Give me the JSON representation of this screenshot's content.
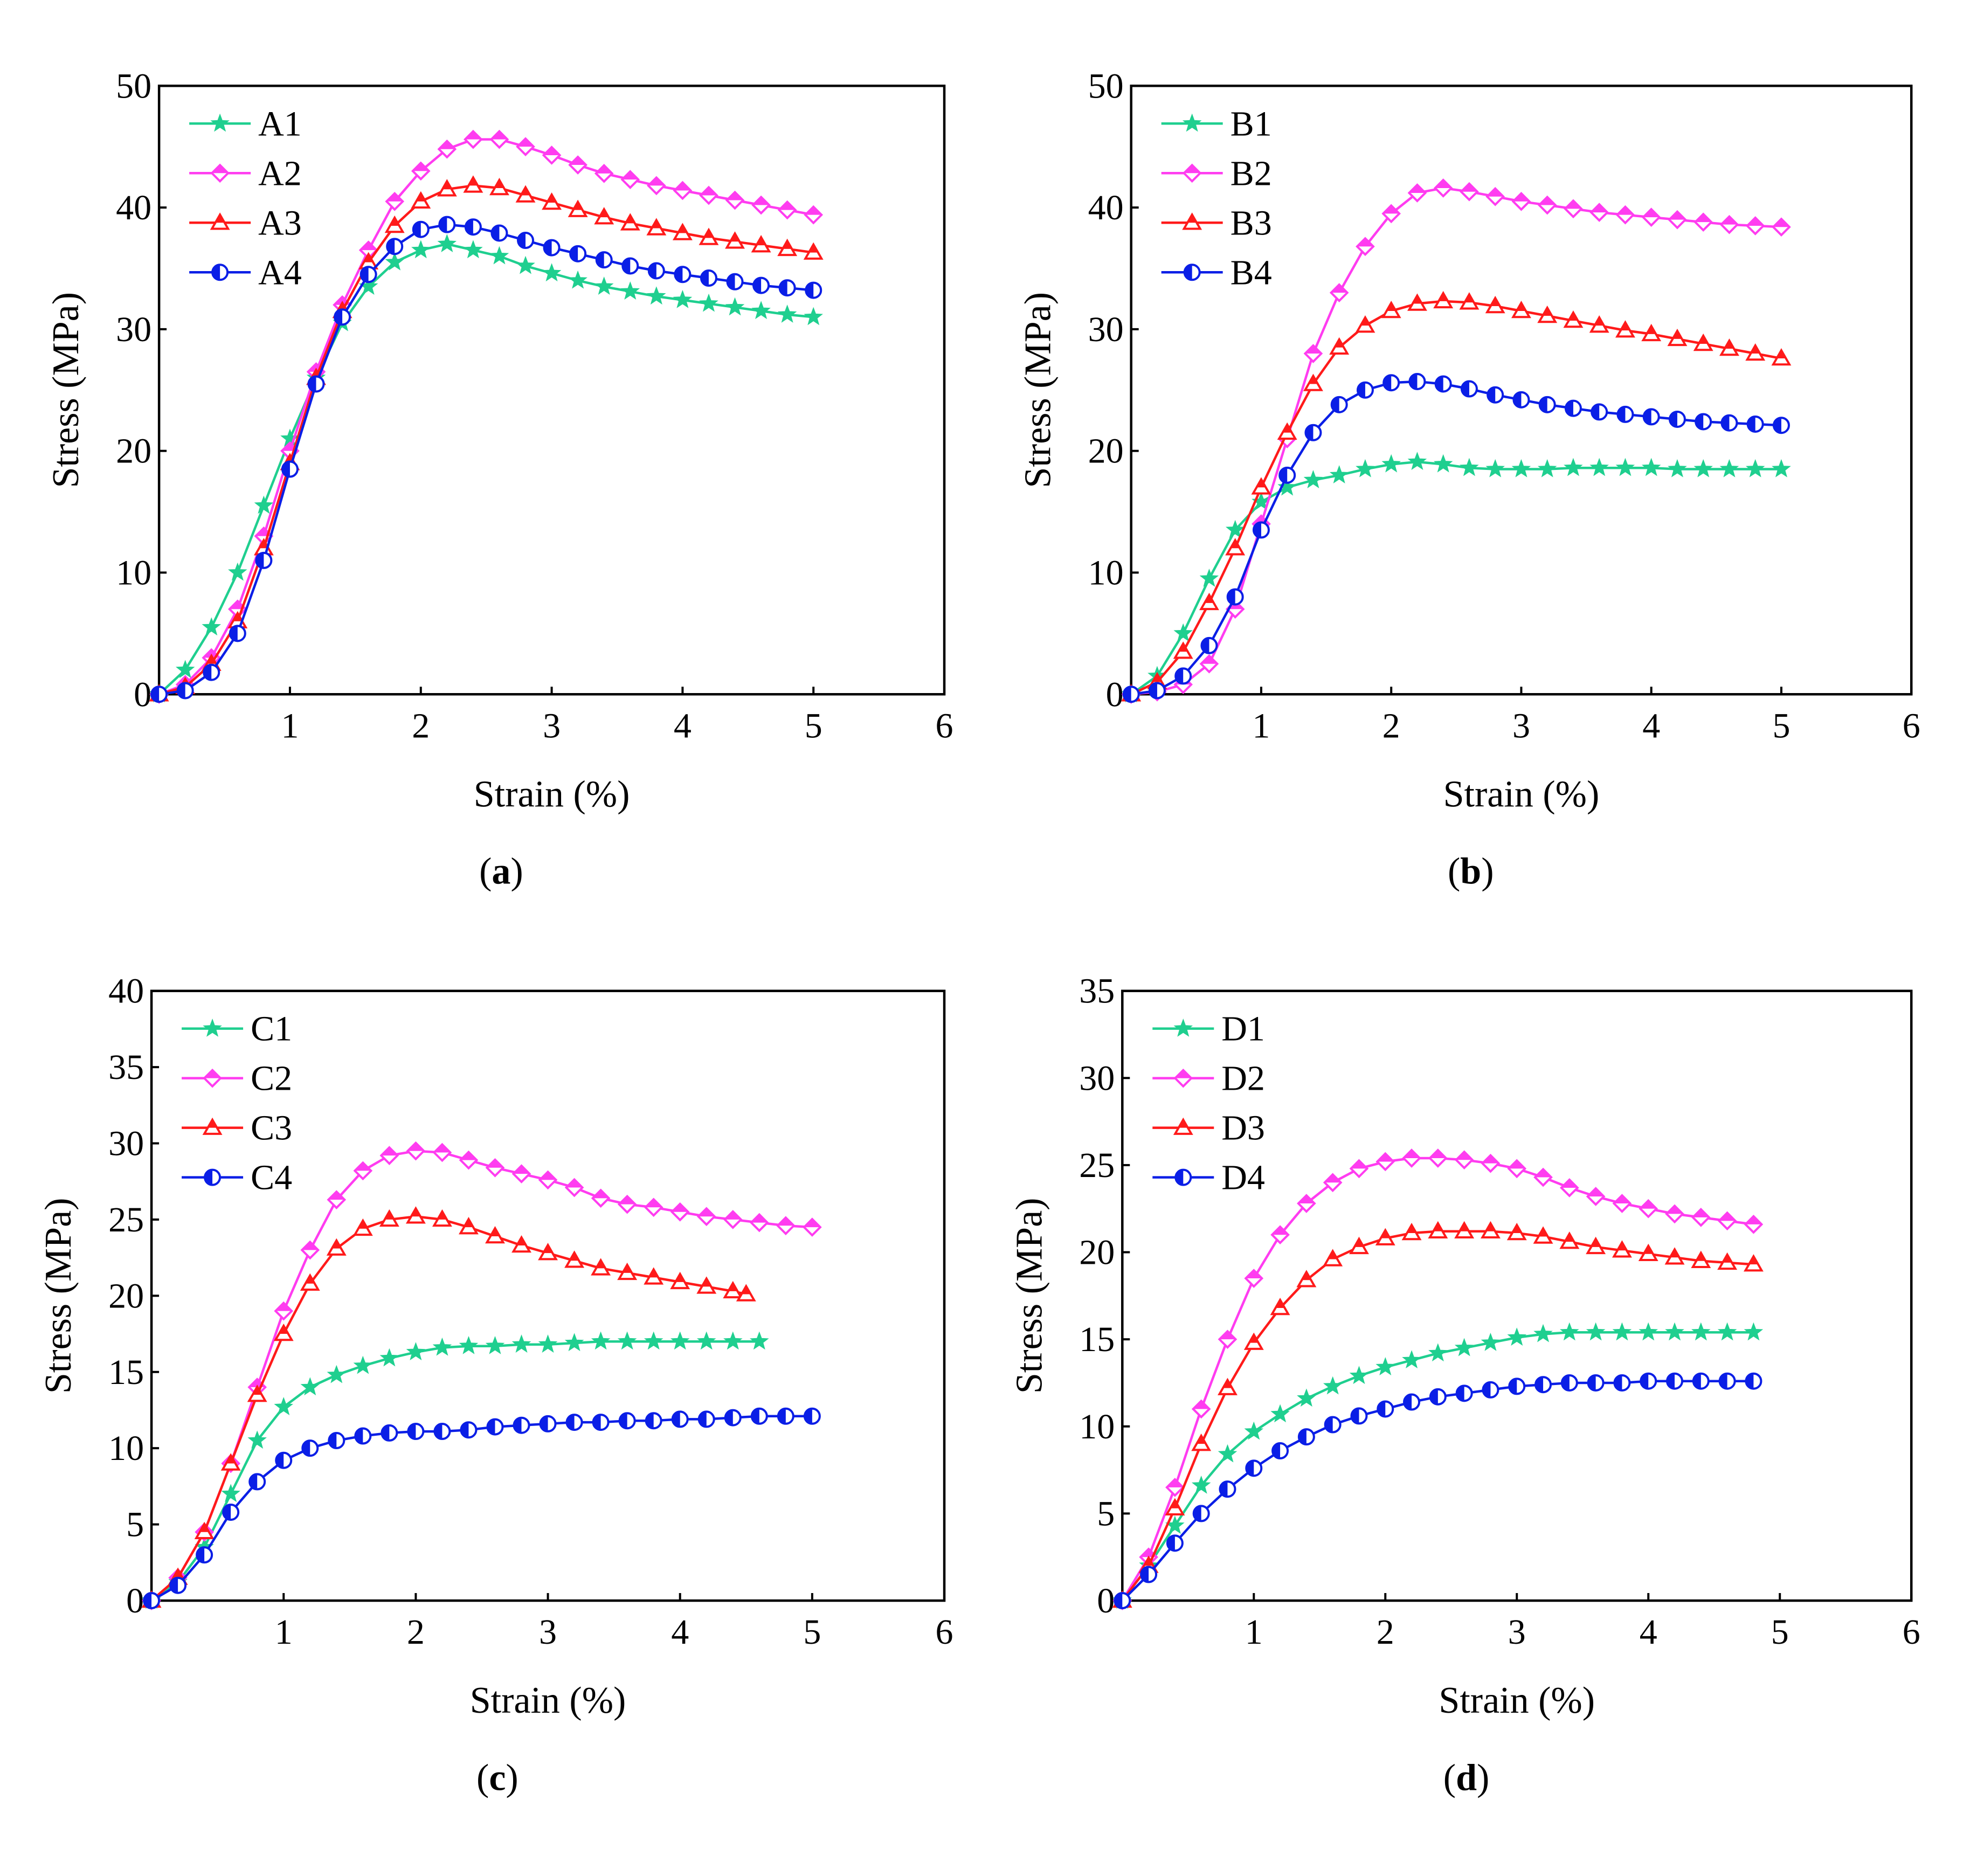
{
  "chart_data": [
    {
      "type": "line",
      "panel_label": "a",
      "title": "",
      "xlabel": "Strain (%)",
      "ylabel": "Stress (MPa)",
      "xlim": [
        0,
        6
      ],
      "ylim": [
        0,
        50
      ],
      "xticks": [
        1,
        2,
        3,
        4,
        5,
        6
      ],
      "yticks": [
        0,
        10,
        20,
        30,
        40,
        50
      ],
      "legend_position": "top-left",
      "series": [
        {
          "name": "A1",
          "color": "#1fcf8f",
          "marker": "star",
          "x": [
            0,
            0.2,
            0.4,
            0.6,
            0.8,
            1.0,
            1.2,
            1.4,
            1.6,
            1.8,
            2.0,
            2.2,
            2.4,
            2.6,
            2.8,
            3.0,
            3.2,
            3.4,
            3.6,
            3.8,
            4.0,
            4.2,
            4.4,
            4.6,
            4.8,
            5.0
          ],
          "y": [
            0,
            2,
            5.5,
            10,
            15.5,
            21,
            26,
            30.5,
            33.5,
            35.5,
            36.5,
            37,
            36.5,
            36,
            35.2,
            34.6,
            34,
            33.5,
            33.1,
            32.7,
            32.4,
            32.1,
            31.8,
            31.5,
            31.2,
            31
          ]
        },
        {
          "name": "A2",
          "color": "#ff3cf0",
          "marker": "diamond",
          "x": [
            0,
            0.2,
            0.4,
            0.6,
            0.8,
            1.0,
            1.2,
            1.4,
            1.6,
            1.8,
            2.0,
            2.2,
            2.4,
            2.6,
            2.8,
            3.0,
            3.2,
            3.4,
            3.6,
            3.8,
            4.0,
            4.2,
            4.4,
            4.6,
            4.8,
            5.0
          ],
          "y": [
            0,
            0.8,
            3,
            7,
            13,
            20,
            26.5,
            32,
            36.5,
            40.5,
            43,
            44.8,
            45.6,
            45.6,
            45,
            44.3,
            43.5,
            42.8,
            42.3,
            41.8,
            41.4,
            41,
            40.6,
            40.2,
            39.8,
            39.4
          ]
        },
        {
          "name": "A3",
          "color": "#ff1a1a",
          "marker": "triangle",
          "x": [
            0,
            0.2,
            0.4,
            0.6,
            0.8,
            1.0,
            1.2,
            1.4,
            1.6,
            1.8,
            2.0,
            2.2,
            2.4,
            2.6,
            2.8,
            3.0,
            3.2,
            3.4,
            3.6,
            3.8,
            4.0,
            4.2,
            4.4,
            4.6,
            4.8,
            5.0
          ],
          "y": [
            0,
            0.6,
            2.5,
            6,
            12,
            19,
            26,
            31.5,
            35.5,
            38.5,
            40.5,
            41.5,
            41.8,
            41.6,
            41,
            40.4,
            39.8,
            39.2,
            38.7,
            38.3,
            37.9,
            37.5,
            37.2,
            36.9,
            36.6,
            36.3
          ]
        },
        {
          "name": "A4",
          "color": "#0a1ee6",
          "marker": "half-circle",
          "x": [
            0,
            0.2,
            0.4,
            0.6,
            0.8,
            1.0,
            1.2,
            1.4,
            1.6,
            1.8,
            2.0,
            2.2,
            2.4,
            2.6,
            2.8,
            3.0,
            3.2,
            3.4,
            3.6,
            3.8,
            4.0,
            4.2,
            4.4,
            4.6,
            4.8,
            5.0
          ],
          "y": [
            0,
            0.3,
            1.8,
            5,
            11,
            18.5,
            25.5,
            31,
            34.5,
            36.8,
            38.2,
            38.6,
            38.4,
            37.9,
            37.3,
            36.7,
            36.2,
            35.7,
            35.2,
            34.8,
            34.5,
            34.2,
            33.9,
            33.6,
            33.4,
            33.2
          ]
        }
      ]
    },
    {
      "type": "line",
      "panel_label": "b",
      "title": "",
      "xlabel": "Strain (%)",
      "ylabel": "Stress (MPa)",
      "xlim": [
        0,
        6
      ],
      "ylim": [
        0,
        50
      ],
      "xticks": [
        1,
        2,
        3,
        4,
        5,
        6
      ],
      "yticks": [
        0,
        10,
        20,
        30,
        40,
        50
      ],
      "legend_position": "top-left",
      "series": [
        {
          "name": "B1",
          "color": "#1fcf8f",
          "marker": "star",
          "x": [
            0,
            0.2,
            0.4,
            0.6,
            0.8,
            1.0,
            1.2,
            1.4,
            1.6,
            1.8,
            2.0,
            2.2,
            2.4,
            2.6,
            2.8,
            3.0,
            3.2,
            3.4,
            3.6,
            3.8,
            4.0,
            4.2,
            4.4,
            4.6,
            4.8,
            5.0
          ],
          "y": [
            0,
            1.5,
            5,
            9.5,
            13.5,
            15.8,
            17,
            17.6,
            18,
            18.5,
            18.9,
            19.1,
            18.9,
            18.6,
            18.5,
            18.5,
            18.5,
            18.6,
            18.6,
            18.6,
            18.6,
            18.5,
            18.5,
            18.5,
            18.5,
            18.5
          ]
        },
        {
          "name": "B2",
          "color": "#ff3cf0",
          "marker": "diamond",
          "x": [
            0,
            0.2,
            0.4,
            0.6,
            0.8,
            1.0,
            1.2,
            1.4,
            1.6,
            1.8,
            2.0,
            2.2,
            2.4,
            2.6,
            2.8,
            3.0,
            3.2,
            3.4,
            3.6,
            3.8,
            4.0,
            4.2,
            4.4,
            4.6,
            4.8,
            5.0
          ],
          "y": [
            0,
            0.2,
            0.8,
            2.5,
            7,
            14,
            21,
            28,
            33,
            36.8,
            39.5,
            41.2,
            41.6,
            41.3,
            40.9,
            40.5,
            40.2,
            39.9,
            39.6,
            39.4,
            39.2,
            39,
            38.8,
            38.6,
            38.5,
            38.4
          ]
        },
        {
          "name": "B3",
          "color": "#ff1a1a",
          "marker": "triangle",
          "x": [
            0,
            0.2,
            0.4,
            0.6,
            0.8,
            1.0,
            1.2,
            1.4,
            1.6,
            1.8,
            2.0,
            2.2,
            2.4,
            2.6,
            2.8,
            3.0,
            3.2,
            3.4,
            3.6,
            3.8,
            4.0,
            4.2,
            4.4,
            4.6,
            4.8,
            5.0
          ],
          "y": [
            0,
            1,
            3.5,
            7.5,
            12,
            17,
            21.5,
            25.5,
            28.5,
            30.3,
            31.5,
            32.1,
            32.3,
            32.2,
            31.9,
            31.5,
            31.1,
            30.7,
            30.3,
            29.9,
            29.6,
            29.2,
            28.8,
            28.4,
            28,
            27.6
          ]
        },
        {
          "name": "B4",
          "color": "#0a1ee6",
          "marker": "half-circle",
          "x": [
            0,
            0.2,
            0.4,
            0.6,
            0.8,
            1.0,
            1.2,
            1.4,
            1.6,
            1.8,
            2.0,
            2.2,
            2.4,
            2.6,
            2.8,
            3.0,
            3.2,
            3.4,
            3.6,
            3.8,
            4.0,
            4.2,
            4.4,
            4.6,
            4.8,
            5.0
          ],
          "y": [
            0,
            0.3,
            1.5,
            4,
            8,
            13.5,
            18,
            21.5,
            23.8,
            25,
            25.6,
            25.7,
            25.5,
            25.1,
            24.6,
            24.2,
            23.8,
            23.5,
            23.2,
            23,
            22.8,
            22.6,
            22.4,
            22.3,
            22.2,
            22.1
          ]
        }
      ]
    },
    {
      "type": "line",
      "panel_label": "c",
      "title": "",
      "xlabel": "Strain (%)",
      "ylabel": "Stress (MPa)",
      "xlim": [
        0,
        6
      ],
      "ylim": [
        0,
        40
      ],
      "xticks": [
        1,
        2,
        3,
        4,
        5,
        6
      ],
      "yticks": [
        0,
        5,
        10,
        15,
        20,
        25,
        30,
        35,
        40
      ],
      "legend_position": "top-left",
      "series": [
        {
          "name": "C1",
          "color": "#1fcf8f",
          "marker": "star",
          "x": [
            0,
            0.2,
            0.4,
            0.6,
            0.8,
            1.0,
            1.2,
            1.4,
            1.6,
            1.8,
            2.0,
            2.2,
            2.4,
            2.6,
            2.8,
            3.0,
            3.2,
            3.4,
            3.6,
            3.8,
            4.0,
            4.2,
            4.4,
            4.6
          ],
          "y": [
            0,
            1.2,
            3.5,
            7,
            10.5,
            12.7,
            14,
            14.8,
            15.4,
            15.9,
            16.3,
            16.6,
            16.7,
            16.7,
            16.8,
            16.8,
            16.9,
            17,
            17,
            17,
            17,
            17,
            17,
            17
          ]
        },
        {
          "name": "C2",
          "color": "#ff3cf0",
          "marker": "diamond",
          "x": [
            0,
            0.2,
            0.4,
            0.6,
            0.8,
            1.0,
            1.2,
            1.4,
            1.6,
            1.8,
            2.0,
            2.2,
            2.4,
            2.6,
            2.8,
            3.0,
            3.2,
            3.4,
            3.6,
            3.8,
            4.0,
            4.2,
            4.4,
            4.6,
            4.8,
            5.0
          ],
          "y": [
            0,
            1.5,
            4.5,
            9,
            14,
            19,
            23,
            26.3,
            28.2,
            29.2,
            29.5,
            29.4,
            28.9,
            28.4,
            28,
            27.6,
            27.1,
            26.4,
            26,
            25.8,
            25.5,
            25.2,
            25,
            24.8,
            24.6,
            24.5
          ]
        },
        {
          "name": "C3",
          "color": "#ff1a1a",
          "marker": "triangle",
          "x": [
            0,
            0.2,
            0.4,
            0.6,
            0.8,
            1.0,
            1.2,
            1.4,
            1.6,
            1.8,
            2.0,
            2.2,
            2.4,
            2.6,
            2.8,
            3.0,
            3.2,
            3.4,
            3.6,
            3.8,
            4.0,
            4.2,
            4.4,
            4.5
          ],
          "y": [
            0,
            1.5,
            4.5,
            9,
            13.5,
            17.5,
            20.8,
            23.1,
            24.4,
            25,
            25.2,
            25,
            24.5,
            23.9,
            23.3,
            22.8,
            22.3,
            21.8,
            21.5,
            21.2,
            20.9,
            20.6,
            20.3,
            20.1
          ]
        },
        {
          "name": "C4",
          "color": "#0a1ee6",
          "marker": "half-circle",
          "x": [
            0,
            0.2,
            0.4,
            0.6,
            0.8,
            1.0,
            1.2,
            1.4,
            1.6,
            1.8,
            2.0,
            2.2,
            2.4,
            2.6,
            2.8,
            3.0,
            3.2,
            3.4,
            3.6,
            3.8,
            4.0,
            4.2,
            4.4,
            4.6,
            4.8,
            5.0
          ],
          "y": [
            0,
            1,
            3,
            5.8,
            7.8,
            9.2,
            10,
            10.5,
            10.8,
            11,
            11.1,
            11.1,
            11.2,
            11.4,
            11.5,
            11.6,
            11.7,
            11.7,
            11.8,
            11.8,
            11.9,
            11.9,
            12,
            12.1,
            12.1,
            12.1
          ]
        }
      ]
    },
    {
      "type": "line",
      "panel_label": "d",
      "title": "",
      "xlabel": "Strain (%)",
      "ylabel": "Stress (MPa)",
      "xlim": [
        0,
        6
      ],
      "ylim": [
        0,
        35
      ],
      "xticks": [
        1,
        2,
        3,
        4,
        5,
        6
      ],
      "yticks": [
        0,
        5,
        10,
        15,
        20,
        25,
        30,
        35
      ],
      "legend_position": "top-left",
      "series": [
        {
          "name": "D1",
          "color": "#1fcf8f",
          "marker": "star",
          "x": [
            0,
            0.2,
            0.4,
            0.6,
            0.8,
            1.0,
            1.2,
            1.4,
            1.6,
            1.8,
            2.0,
            2.2,
            2.4,
            2.6,
            2.8,
            3.0,
            3.2,
            3.4,
            3.6,
            3.8,
            4.0,
            4.2,
            4.4,
            4.6,
            4.8
          ],
          "y": [
            0,
            2,
            4.3,
            6.6,
            8.4,
            9.7,
            10.7,
            11.6,
            12.3,
            12.9,
            13.4,
            13.8,
            14.2,
            14.5,
            14.8,
            15.1,
            15.3,
            15.4,
            15.4,
            15.4,
            15.4,
            15.4,
            15.4,
            15.4,
            15.4
          ]
        },
        {
          "name": "D2",
          "color": "#ff3cf0",
          "marker": "diamond",
          "x": [
            0,
            0.2,
            0.4,
            0.6,
            0.8,
            1.0,
            1.2,
            1.4,
            1.6,
            1.8,
            2.0,
            2.2,
            2.4,
            2.6,
            2.8,
            3.0,
            3.2,
            3.4,
            3.6,
            3.8,
            4.0,
            4.2,
            4.4,
            4.6,
            4.8
          ],
          "y": [
            0,
            2.5,
            6.5,
            11,
            15,
            18.5,
            21,
            22.8,
            24,
            24.8,
            25.2,
            25.4,
            25.4,
            25.3,
            25.1,
            24.8,
            24.3,
            23.7,
            23.2,
            22.8,
            22.5,
            22.2,
            22,
            21.8,
            21.6
          ]
        },
        {
          "name": "D3",
          "color": "#ff1a1a",
          "marker": "triangle",
          "x": [
            0,
            0.2,
            0.4,
            0.6,
            0.8,
            1.0,
            1.2,
            1.4,
            1.6,
            1.8,
            2.0,
            2.2,
            2.4,
            2.6,
            2.8,
            3.0,
            3.2,
            3.4,
            3.6,
            3.8,
            4.0,
            4.2,
            4.4,
            4.6,
            4.8
          ],
          "y": [
            0,
            2,
            5.3,
            9,
            12.2,
            14.8,
            16.8,
            18.4,
            19.6,
            20.3,
            20.8,
            21.1,
            21.2,
            21.2,
            21.2,
            21.1,
            20.9,
            20.6,
            20.3,
            20.1,
            19.9,
            19.7,
            19.5,
            19.4,
            19.3
          ]
        },
        {
          "name": "D4",
          "color": "#0a1ee6",
          "marker": "half-circle",
          "x": [
            0,
            0.2,
            0.4,
            0.6,
            0.8,
            1.0,
            1.2,
            1.4,
            1.6,
            1.8,
            2.0,
            2.2,
            2.4,
            2.6,
            2.8,
            3.0,
            3.2,
            3.4,
            3.6,
            3.8,
            4.0,
            4.2,
            4.4,
            4.6,
            4.8
          ],
          "y": [
            0,
            1.5,
            3.3,
            5,
            6.4,
            7.6,
            8.6,
            9.4,
            10.1,
            10.6,
            11,
            11.4,
            11.7,
            11.9,
            12.1,
            12.3,
            12.4,
            12.5,
            12.5,
            12.5,
            12.6,
            12.6,
            12.6,
            12.6,
            12.6
          ]
        }
      ]
    }
  ]
}
